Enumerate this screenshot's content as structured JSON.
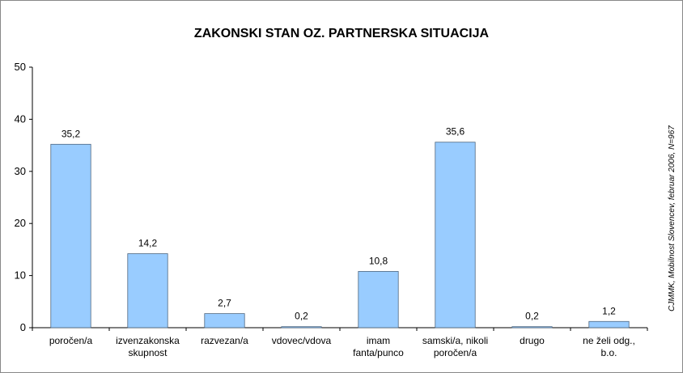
{
  "chart_data": {
    "type": "bar",
    "title": "ZAKONSKI STAN OZ. PARTNERSKA SITUACIJA",
    "source": "CJMMK, Mobilnost Slovencev, februar 2006, N=967",
    "categories": [
      "poročen/a",
      "izvenzakonska\nskupnost",
      "razvezan/a",
      "vdovec/vdova",
      "imam\nfanta/punco",
      "samski/a, nikoli\nporočen/a",
      "drugo",
      "ne želi odg.,\nb.o."
    ],
    "values": [
      35.2,
      14.2,
      2.7,
      0.2,
      10.8,
      35.6,
      0.2,
      1.2
    ],
    "value_labels": [
      "35,2",
      "14,2",
      "2,7",
      "0,2",
      "10,8",
      "35,6",
      "0,2",
      "1,2"
    ],
    "color": "#99ccff",
    "ylim": [
      0,
      50
    ],
    "yticks": [
      0,
      10,
      20,
      30,
      40,
      50
    ],
    "grid": false
  }
}
